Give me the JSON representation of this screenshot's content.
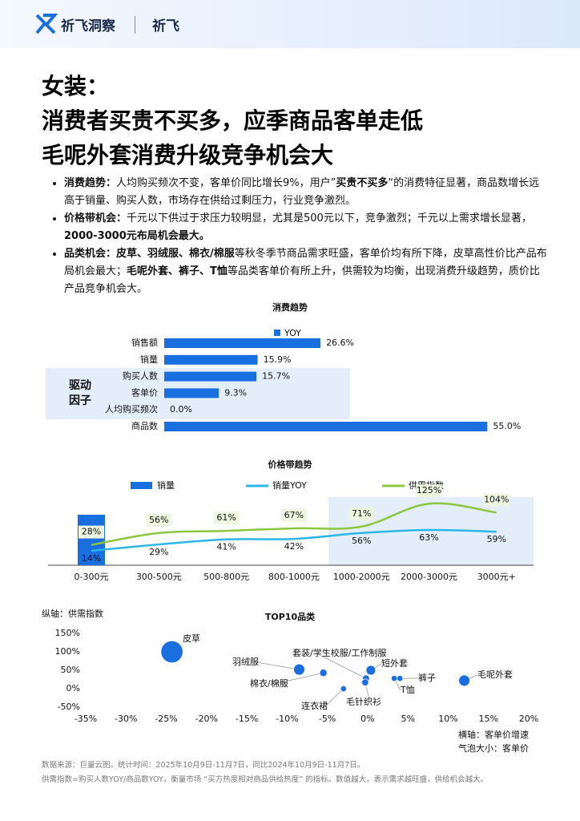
{
  "header": {
    "brand": "祈飞洞察",
    "brand2": "祈飞"
  },
  "title": [
    "女装：",
    "消费者买贵不买多，应季商品客单走低",
    "毛呢外套消费升级竞争机会大"
  ],
  "bullets": [
    [
      {
        "text": "消费趋势：",
        "bold": true
      },
      {
        "text": "人均购买频次不变，客单价同比增长9%，用户”",
        "bold": false
      },
      {
        "text": "买贵不买多",
        "bold": true
      },
      {
        "text": "“的消费特征显著，商品数增长远高于销量、购买人数，市场存在供给过剩压力，行业竞争激烈。",
        "bold": false
      }
    ],
    [
      {
        "text": "价格带机会：",
        "bold": true
      },
      {
        "text": "千元以下供过于求压力较明显，尤其是500元以下，竞争激烈；千元以上需求增长显著，",
        "bold": false
      },
      {
        "text": "2000-3000元布局机会最大。",
        "bold": true
      }
    ],
    [
      {
        "text": "品类机会：",
        "bold": true
      },
      {
        "text": "皮草、羽绒服、棉衣/棉服",
        "bold": true
      },
      {
        "text": "等秋冬季节商品需求旺盛，客单价均有所下降，皮草高性价比产品布局机会最大；",
        "bold": false
      },
      {
        "text": "毛呢外套、裤子、T恤",
        "bold": true
      },
      {
        "text": "等品类客单价有所上升，供需较为均衡，出现消费升级趋势，质价比产品竞争机会大。",
        "bold": false
      }
    ]
  ],
  "chart_data": [
    {
      "type": "bar",
      "title": "消费趋势",
      "categories": [
        "销售额",
        "销量",
        "购买人数",
        "客单价",
        "人均购买频次",
        "商品数"
      ],
      "series": [
        {
          "name": "YOY",
          "color": "#1a6fe0",
          "values": [
            26.6,
            15.9,
            15.7,
            9.3,
            0.0,
            55.0
          ],
          "value_labels": [
            "26.6%",
            "15.9%",
            "15.7%",
            "9.3%",
            "0.0%",
            "55.0%"
          ]
        }
      ],
      "xlim": [
        0,
        60
      ],
      "annotation": "驱动因子"
    },
    {
      "type": "combo",
      "title": "价格带趋势",
      "categories": [
        "0-300元",
        "300-500元",
        "500-800元",
        "800-1000元",
        "1000-2000元",
        "2000-3000元",
        "3000元+"
      ],
      "series": [
        {
          "name": "销量",
          "kind": "bar",
          "color": "#1a6fe0",
          "values": [
            70,
            0,
            0,
            0,
            0,
            0,
            0
          ]
        },
        {
          "name": "销量YOY",
          "kind": "line",
          "axis": "y2",
          "color": "#2bb5e8",
          "values": [
            14,
            29,
            41,
            42,
            56,
            63,
            59
          ],
          "value_labels": [
            "14%",
            "29%",
            "41%",
            "42%",
            "56%",
            "63%",
            "59%"
          ]
        },
        {
          "name": "供需指数",
          "kind": "line",
          "axis": "y2",
          "color": "#8cc63f",
          "values": [
            28,
            56,
            61,
            67,
            71,
            125,
            104
          ],
          "value_labels": [
            "28%",
            "56%",
            "61%",
            "67%",
            "71%",
            "125%",
            "104%"
          ]
        }
      ],
      "ylim": [
        0,
        100
      ],
      "y2lim": [
        -20,
        150
      ]
    },
    {
      "type": "scatter",
      "title": "TOP10品类",
      "y_label": "纵轴：供需指数",
      "x_label": "横轴：客单价增速",
      "size_label": "气泡大小：客单价",
      "color": "#1a6fe0",
      "points": [
        {
          "name": "皮草",
          "x": -24.3,
          "y": 100,
          "size": 150
        },
        {
          "name": "羽绒服",
          "x": -8.5,
          "y": 52,
          "size": 30
        },
        {
          "name": "套装/学生校服/工作制服",
          "x": -0.2,
          "y": 28,
          "size": 8
        },
        {
          "name": "短外套",
          "x": 0.4,
          "y": 50,
          "size": 20
        },
        {
          "name": "棉衣/棉服",
          "x": -5.5,
          "y": 43,
          "size": 10
        },
        {
          "name": "连衣裙",
          "x": -3,
          "y": 0,
          "size": 5
        },
        {
          "name": "毛针织衫",
          "x": -0.3,
          "y": 17,
          "size": 8
        },
        {
          "name": "裤子",
          "x": 4,
          "y": 28,
          "size": 5
        },
        {
          "name": "T恤",
          "x": 3.3,
          "y": 28,
          "size": 5
        },
        {
          "name": "毛呢外套",
          "x": 12,
          "y": 22,
          "size": 30
        }
      ],
      "xlim": [
        -35,
        20
      ],
      "ylim": [
        -50,
        150
      ],
      "xticks": [
        {
          "value": -35,
          "label": "-35%"
        },
        {
          "value": -30,
          "label": "-30%"
        },
        {
          "value": -25,
          "label": "-25%"
        },
        {
          "value": -20,
          "label": "-20%"
        },
        {
          "value": -15,
          "label": "-15%"
        },
        {
          "value": -10,
          "label": "-10%"
        },
        {
          "value": -5,
          "label": "-5%"
        },
        {
          "value": 0,
          "label": "0%"
        },
        {
          "value": 5,
          "label": "5%"
        },
        {
          "value": 10,
          "label": "10%"
        },
        {
          "value": 15,
          "label": "15%"
        },
        {
          "value": 20,
          "label": "20%"
        }
      ],
      "yticks": [
        {
          "value": 150,
          "label": "150%"
        },
        {
          "value": 100,
          "label": "100%"
        },
        {
          "value": 50,
          "label": "50%"
        },
        {
          "value": 0,
          "label": "0%"
        },
        {
          "value": -50,
          "label": "-50%"
        }
      ]
    }
  ],
  "footer": [
    "数据来源：巨量云图。统计时间：2025年10月9日-11月7日，同比2024年10月9日-11月7日。",
    "供需指数=购买人数YOY/商品数YOY，衡量市场 “买方热度相对商品供给热度” 的指标。数值越大，表示需求越旺盛，供给机会越大。"
  ]
}
